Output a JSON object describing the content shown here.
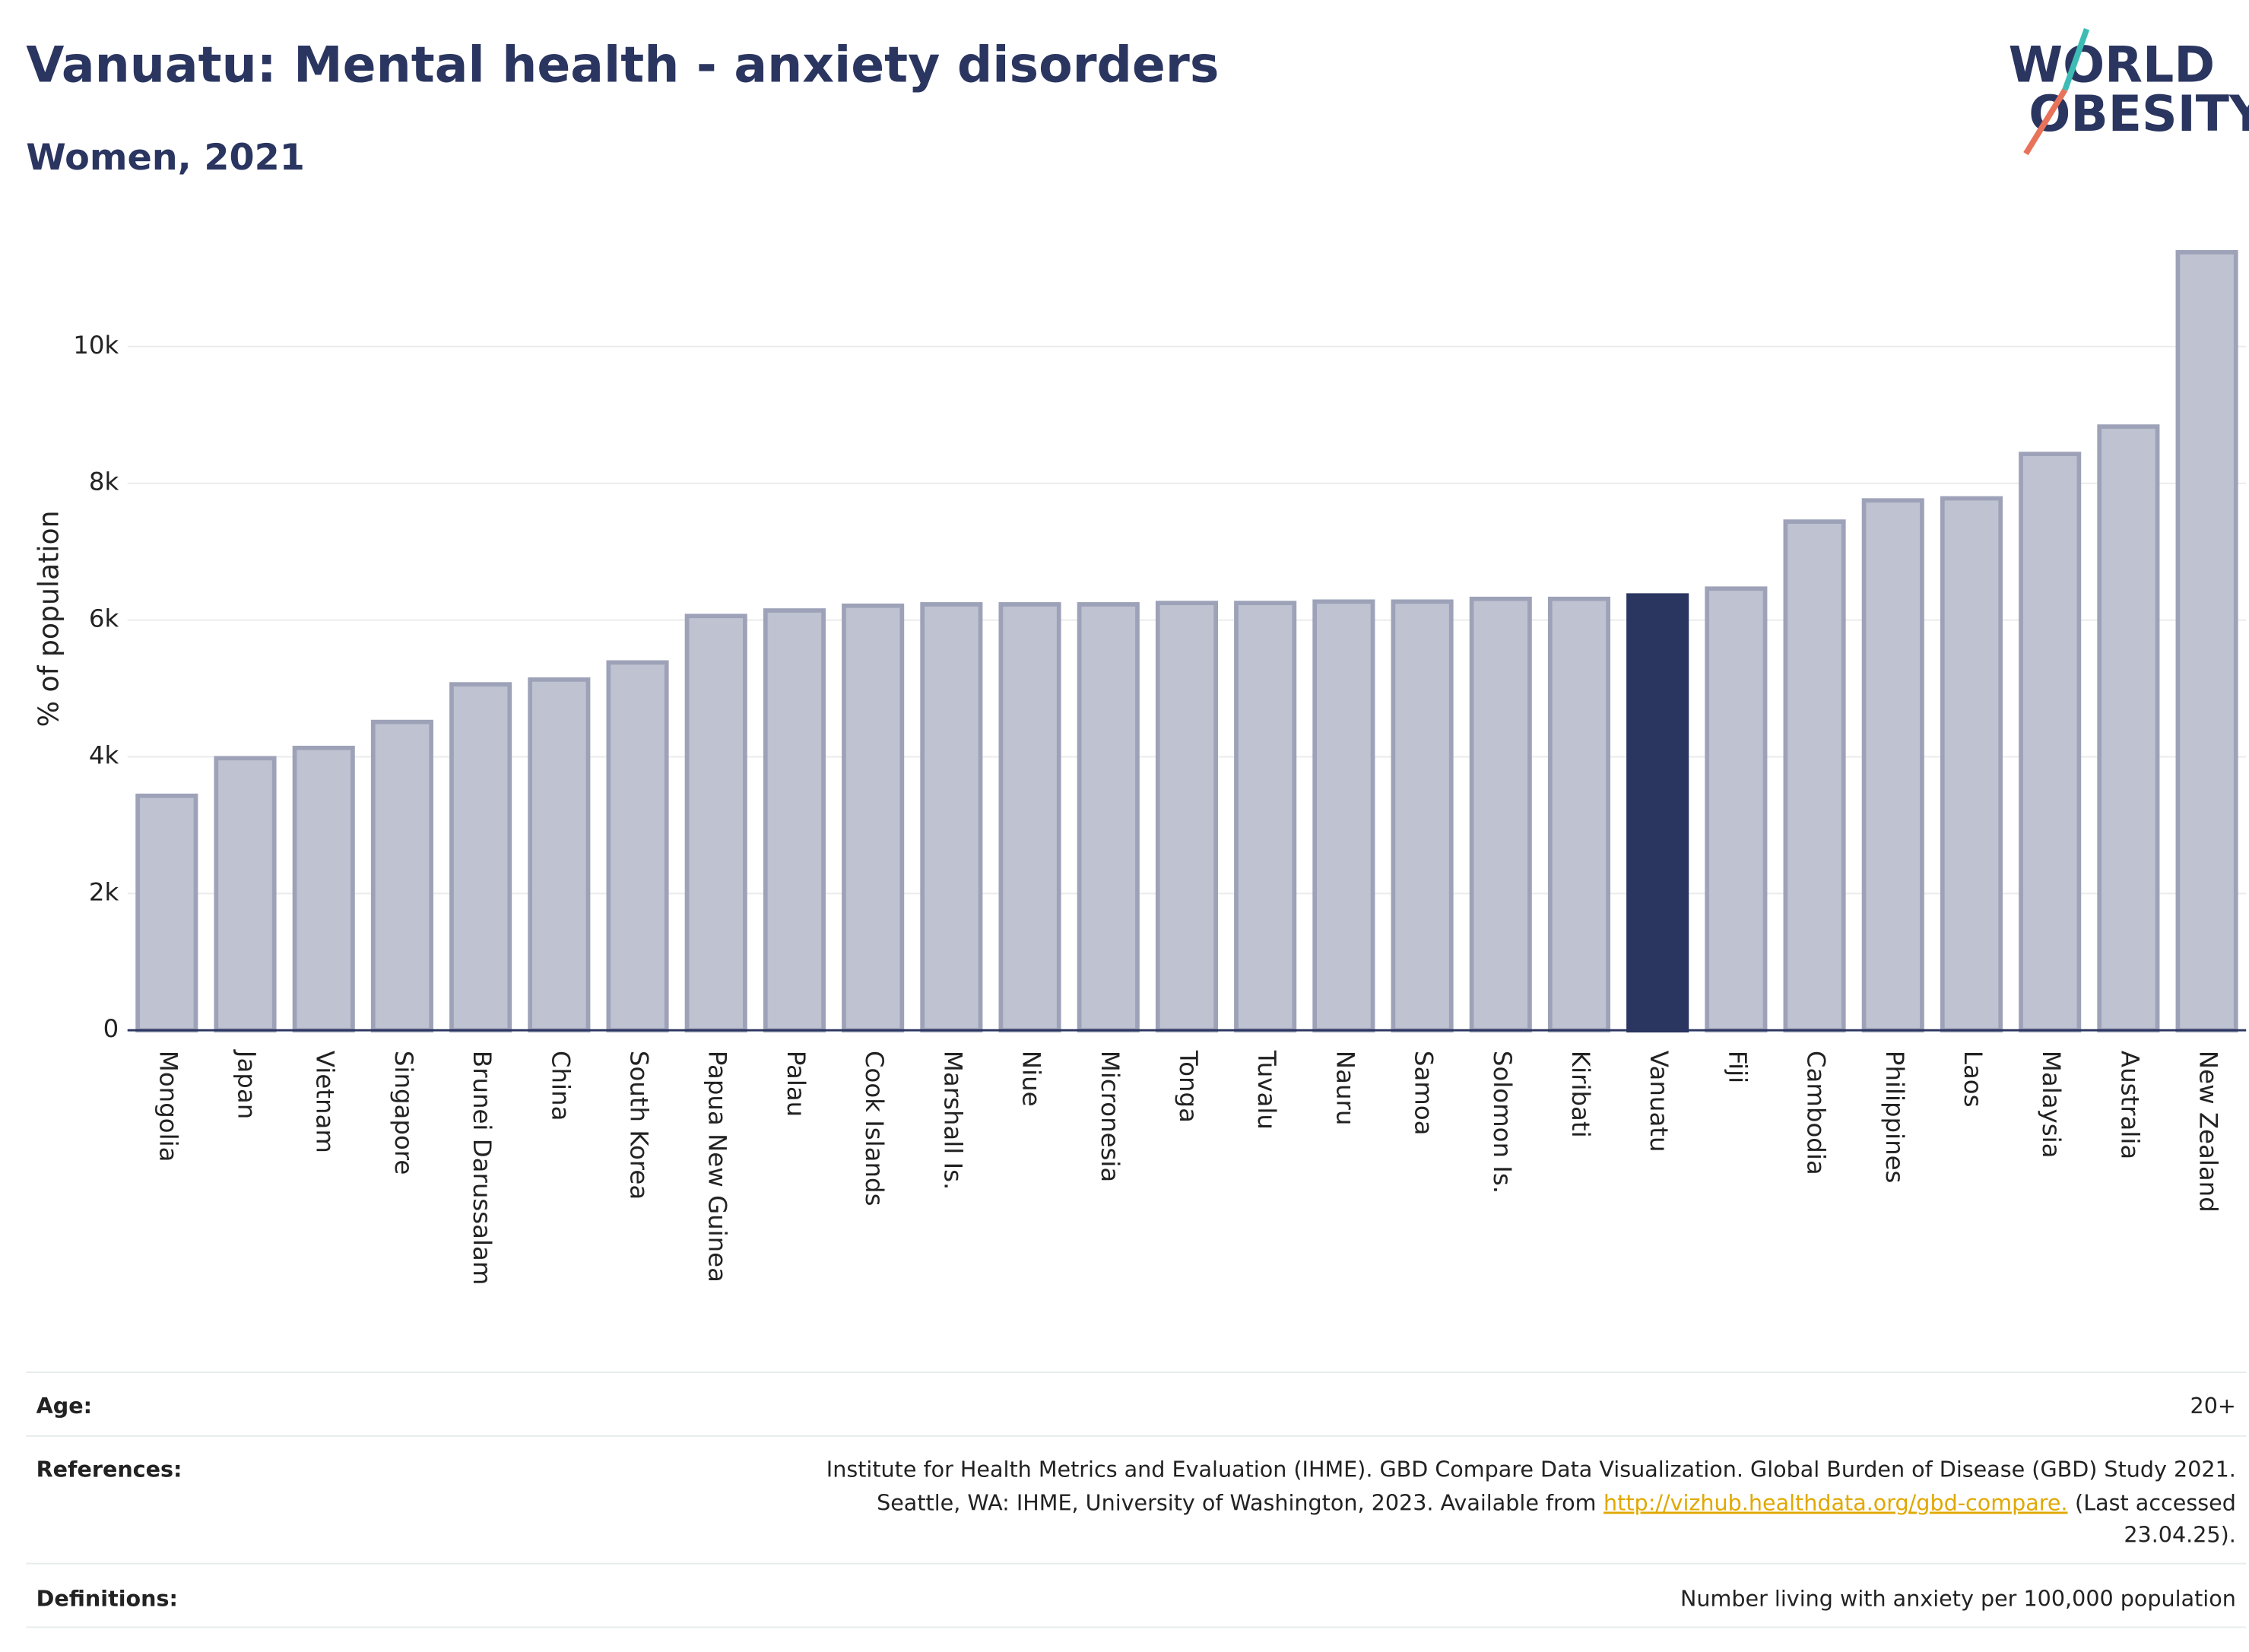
{
  "chart_data": {
    "type": "bar",
    "title": "Vanuatu: Mental health - anxiety disorders",
    "subtitle": "Women, 2021",
    "y_label": "% of population",
    "categories": [
      "Mongolia",
      "Japan",
      "Vietnam",
      "Singapore",
      "Brunei Darussalam",
      "China",
      "South Korea",
      "Papua New Guinea",
      "Palau",
      "Cook Islands",
      "Marshall Is.",
      "Niue",
      "Micronesia",
      "Tonga",
      "Tuvalu",
      "Nauru",
      "Samoa",
      "Solomon Is.",
      "Kiribati",
      "Vanuatu",
      "Fiji",
      "Cambodia",
      "Philippines",
      "Laos",
      "Malaysia",
      "Australia",
      "New Zealand"
    ],
    "values": [
      3430,
      3980,
      4130,
      4510,
      5060,
      5130,
      5380,
      6060,
      6140,
      6210,
      6230,
      6230,
      6230,
      6250,
      6250,
      6270,
      6270,
      6310,
      6310,
      6360,
      6460,
      7440,
      7750,
      7780,
      8430,
      8830,
      11380
    ],
    "colors": [
      "#bfc2d0",
      "#bfc2d0",
      "#bfc2d0",
      "#bfc2d0",
      "#bfc2d0",
      "#bfc2d0",
      "#bfc2d0",
      "#bfc2d0",
      "#bfc2d0",
      "#bfc2d0",
      "#bfc2d0",
      "#bfc2d0",
      "#bfc2d0",
      "#bfc2d0",
      "#bfc2d0",
      "#bfc2d0",
      "#bfc2d0",
      "#bfc2d0",
      "#bfc2d0",
      "#2a3560",
      "#bfc2d0",
      "#bfc2d0",
      "#bfc2d0",
      "#bfc2d0",
      "#bfc2d0",
      "#bfc2d0",
      "#bfc2d0"
    ],
    "ylim": [
      0,
      11380
    ],
    "yticks": [
      0,
      {
        "value": 2000,
        "label": "2k"
      },
      {
        "value": 4000,
        "label": "4k"
      },
      {
        "value": 6000,
        "label": "6k"
      },
      {
        "value": 8000,
        "label": "8k"
      },
      {
        "value": 10000,
        "label": "10k"
      }
    ],
    "grid": true
  },
  "logo": {
    "line1": "WORLD",
    "line2": "OBESITY"
  },
  "footer": {
    "age_label": "Age:",
    "age_value": "20+",
    "references_label": "References:",
    "ref_line1": "Institute for Health Metrics and Evaluation (IHME). GBD Compare Data Visualization. Global Burden of Disease (GBD) Study 2021.",
    "ref_line2": "Seattle, WA: IHME, University of Washington, 2023. Available from",
    "ref_link": "http://vizhub.healthdata.org/gbd-compare.",
    "ref_line2_end": "(Last accessed",
    "ref_line3": "23.04.25).",
    "definitions_label": "Definitions:",
    "definitions_value": "Number living with anxiety per 100,000 population"
  }
}
